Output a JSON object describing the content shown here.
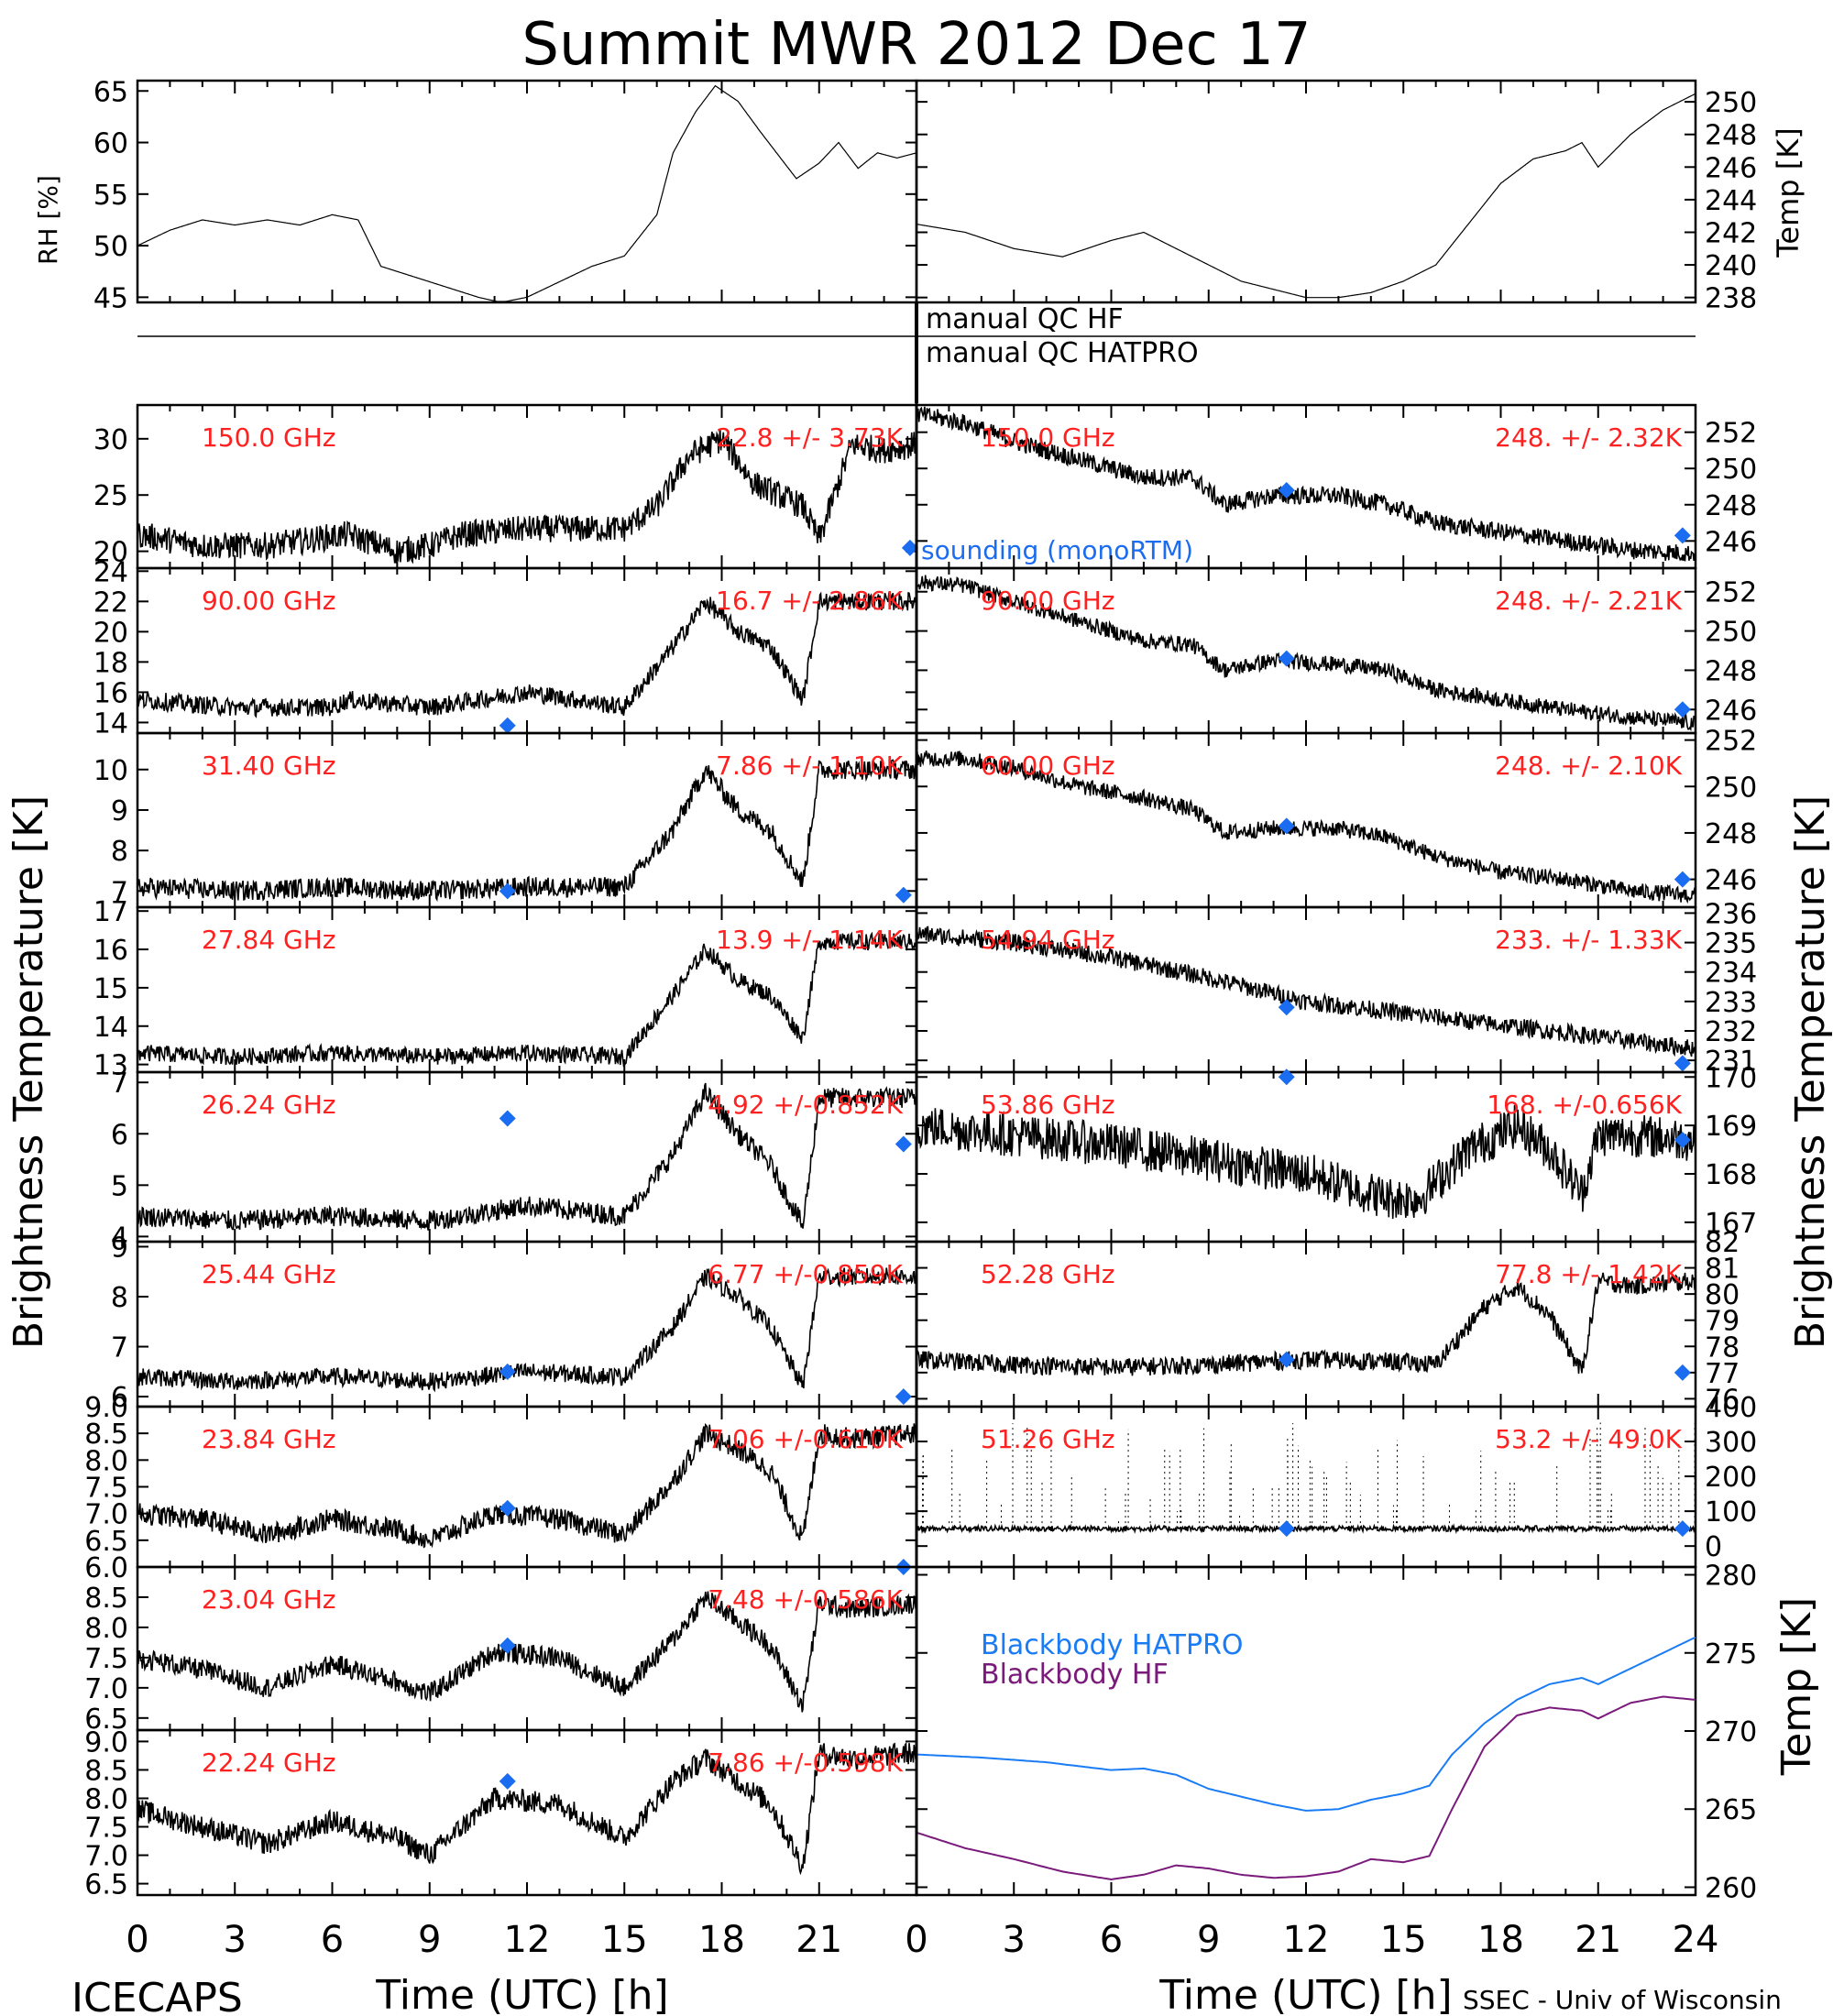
{
  "title": "Summit MWR 2012 Dec 17",
  "footer": {
    "left": "ICECAPS",
    "right": "SSEC - Univ of Wisconsin",
    "x_title_left": "Time (UTC) [h]",
    "x_title_right": "Time (UTC) [h]"
  },
  "qc": {
    "hf": "manual  QC HF",
    "hatpro": "manual  QC HATPRO"
  },
  "axis_labels": {
    "rh": "RH [%]",
    "temp": "Temp [K]",
    "tb_left": "Brightness Temperature [K]",
    "tb_right": "Brightness Temperature [K]",
    "bb_temp": "Temp [K]"
  },
  "colors": {
    "trace": "#000000",
    "label_red": "#ff2020",
    "sounding_blue": "#1a6cf0",
    "bb_hatpro": "#1a7cf5",
    "bb_hf": "#7a1a7a"
  },
  "x_ticks": [
    "0",
    "3",
    "6",
    "9",
    "12",
    "15",
    "18",
    "21",
    "0",
    "3",
    "6",
    "9",
    "12",
    "15",
    "18",
    "21",
    "24"
  ],
  "chart_data": [
    {
      "type": "line",
      "panel": "rh",
      "ylabel": "RH [%]",
      "ylim": [
        44.5,
        66
      ],
      "yticks": [
        "45",
        "50",
        "55",
        "60",
        "65"
      ],
      "x": [
        0,
        1,
        2,
        3,
        4,
        5,
        6,
        6.8,
        7.5,
        8.5,
        9.5,
        10.5,
        11.2,
        12,
        13,
        14,
        15,
        16.0,
        16.5,
        17.2,
        17.8,
        18.5,
        19.2,
        20.3,
        21,
        21.6,
        22.2,
        22.8,
        23.4,
        24
      ],
      "values": [
        50,
        51.5,
        52.5,
        52,
        52.5,
        52,
        53,
        52.5,
        48,
        47,
        46,
        45,
        44.5,
        45,
        46.5,
        48,
        49,
        53,
        59,
        63,
        65.5,
        64,
        61,
        56.5,
        58,
        60,
        57.5,
        59,
        58.5,
        59
      ]
    },
    {
      "type": "line",
      "panel": "temp",
      "ylabel": "Temp [K]",
      "ylim": [
        237.7,
        251.3
      ],
      "yticks": [
        "238",
        "240",
        "242",
        "244",
        "246",
        "248",
        "250"
      ],
      "x": [
        0,
        1.5,
        3,
        4.5,
        6,
        7,
        8,
        9,
        10,
        11,
        12,
        13,
        14,
        15,
        16,
        17,
        18,
        19,
        20,
        20.5,
        21,
        22,
        23,
        24
      ],
      "values": [
        242.5,
        242,
        241,
        240.5,
        241.5,
        242,
        241,
        240,
        239,
        238.5,
        238,
        238,
        238.3,
        239,
        240,
        242.5,
        245,
        246.5,
        247,
        247.5,
        246,
        248,
        249.5,
        250.5
      ]
    },
    {
      "type": "line",
      "side": "left",
      "freq": "150.0 GHz",
      "stats": "22.8 +/- 3.73K",
      "ylim": [
        18.5,
        33
      ],
      "yticks": [
        "20",
        "25",
        "30"
      ],
      "x": [
        0,
        2,
        4,
        6.5,
        8,
        9,
        10,
        12,
        14,
        15,
        16,
        17,
        18,
        19,
        20.5,
        21,
        22,
        23,
        24
      ],
      "values": [
        21.5,
        20.5,
        20.5,
        21.5,
        20,
        20.5,
        21.5,
        22,
        22,
        22,
        24,
        28.5,
        30,
        26,
        24,
        21,
        29.5,
        29,
        29.5
      ],
      "noise": 1.2,
      "sounding": [
        [
          23.8,
          20.3
        ]
      ],
      "sounding_label": "sounding (monoRTM)"
    },
    {
      "type": "line",
      "side": "right",
      "freq": "150.0 GHz",
      "stats": "248. +/- 2.32K",
      "ylim": [
        244.5,
        253.5
      ],
      "yticks": [
        "246",
        "248",
        "250",
        "252"
      ],
      "x": [
        0,
        1.5,
        3,
        5,
        7,
        8.5,
        9.5,
        11,
        13,
        14.5,
        16,
        18,
        20,
        22,
        24
      ],
      "values": [
        253,
        252.5,
        251.5,
        250.5,
        249.5,
        249.5,
        248.0,
        248.5,
        248.5,
        248,
        247,
        246.5,
        246,
        245.5,
        245.3
      ],
      "noise": 0.5,
      "sounding": [
        [
          11.4,
          248.8
        ],
        [
          23.6,
          246.3
        ]
      ]
    },
    {
      "type": "line",
      "side": "left",
      "freq": "90.00 GHz",
      "stats": "16.7 +/- 2.86K",
      "ylim": [
        13.3,
        24.2
      ],
      "yticks": [
        "14",
        "16",
        "18",
        "20",
        "22",
        "24"
      ],
      "x": [
        0,
        3,
        6,
        6.5,
        9,
        12,
        15,
        16.5,
        17.5,
        18.5,
        19.5,
        20.5,
        21,
        22,
        24
      ],
      "values": [
        15.5,
        15,
        15,
        15.5,
        15,
        16,
        15,
        19,
        22,
        20,
        19,
        15.5,
        22,
        22,
        22
      ],
      "noise": 0.6,
      "sounding": [
        [
          11.4,
          13.8
        ]
      ]
    },
    {
      "type": "line",
      "side": "right",
      "freq": "90.00 GHz",
      "stats": "248. +/- 2.21K",
      "ylim": [
        244.8,
        253.2
      ],
      "yticks": [
        "246",
        "248",
        "250",
        "252"
      ],
      "x": [
        0,
        1.5,
        3,
        5,
        7,
        8.5,
        9.5,
        11,
        13,
        14.5,
        16,
        18,
        20,
        22,
        24
      ],
      "values": [
        252.5,
        252.3,
        251.5,
        250.5,
        249.5,
        249.3,
        248,
        248.5,
        248.3,
        248,
        247,
        246.5,
        246,
        245.6,
        245.3
      ],
      "noise": 0.4,
      "sounding": [
        [
          11.4,
          248.6
        ],
        [
          23.6,
          246
        ]
      ]
    },
    {
      "type": "line",
      "side": "left",
      "freq": "31.40 GHz",
      "stats": "7.86 +/- 1.10K",
      "ylim": [
        6.6,
        10.9
      ],
      "yticks": [
        "7",
        "8",
        "9",
        "10"
      ],
      "x": [
        0,
        3,
        6,
        9,
        12,
        15,
        16.5,
        17.5,
        18.5,
        19.5,
        20.5,
        21,
        22,
        24
      ],
      "values": [
        7.1,
        7.0,
        7.1,
        7.0,
        7.1,
        7.1,
        8.5,
        10,
        9,
        8.5,
        7.2,
        10,
        10,
        10
      ],
      "noise": 0.25,
      "sounding": [
        [
          11.4,
          7.0
        ],
        [
          23.6,
          6.9
        ]
      ]
    },
    {
      "type": "line",
      "side": "right",
      "freq": "60.00 GHz",
      "stats": "248. +/- 2.10K",
      "ylim": [
        244.8,
        252.3
      ],
      "yticks": [
        "246",
        "248",
        "250",
        "252"
      ],
      "x": [
        0,
        1.5,
        3,
        5,
        7,
        8.5,
        9.5,
        11,
        13,
        14.5,
        16,
        18,
        20,
        22,
        24
      ],
      "values": [
        251.2,
        251.2,
        250.8,
        250,
        249.5,
        249,
        248,
        248.2,
        248.2,
        247.8,
        247,
        246.3,
        246,
        245.5,
        245.3
      ],
      "noise": 0.35,
      "sounding": [
        [
          11.4,
          248.3
        ],
        [
          23.6,
          246
        ]
      ]
    },
    {
      "type": "line",
      "side": "left",
      "freq": "27.84 GHz",
      "stats": "13.9 +/- 1.14K",
      "ylim": [
        12.8,
        17.1
      ],
      "yticks": [
        "13",
        "14",
        "15",
        "16",
        "17"
      ],
      "x": [
        0,
        3,
        6,
        9,
        12,
        15,
        16.5,
        17.5,
        18.5,
        19.5,
        20.5,
        21,
        22,
        24
      ],
      "values": [
        13.3,
        13.2,
        13.3,
        13.2,
        13.3,
        13.2,
        14.8,
        16,
        15.2,
        14.8,
        13.7,
        16.2,
        16.2,
        16.2
      ],
      "noise": 0.22,
      "sounding": []
    },
    {
      "type": "line",
      "side": "right",
      "freq": "54.94 GHz",
      "stats": "233. +/- 1.33K",
      "ylim": [
        230.6,
        236.2
      ],
      "yticks": [
        "231",
        "232",
        "233",
        "234",
        "235",
        "236"
      ],
      "x": [
        0,
        3,
        6,
        9,
        12,
        15,
        18,
        21,
        24
      ],
      "values": [
        235.3,
        235,
        234.5,
        233.8,
        233,
        232.6,
        232.2,
        231.8,
        231.4
      ],
      "noise": 0.3,
      "sounding": [
        [
          11.4,
          232.8
        ],
        [
          23.6,
          230.9
        ]
      ]
    },
    {
      "type": "line",
      "side": "left",
      "freq": "26.24 GHz",
      "stats": "4.92 +/-0.852K",
      "ylim": [
        3.9,
        7.2
      ],
      "yticks": [
        "4",
        "5",
        "6",
        "7"
      ],
      "x": [
        0,
        3,
        6,
        9,
        12,
        15,
        16.5,
        17.5,
        18.5,
        19.5,
        20.5,
        21,
        22,
        24
      ],
      "values": [
        4.4,
        4.3,
        4.4,
        4.3,
        4.6,
        4.4,
        5.6,
        6.8,
        6.0,
        5.4,
        4.2,
        6.7,
        6.7,
        6.7
      ],
      "noise": 0.2,
      "sounding": [
        [
          11.4,
          6.3
        ],
        [
          23.6,
          5.8
        ]
      ]
    },
    {
      "type": "line",
      "side": "right",
      "freq": "53.86 GHz",
      "stats": "168. +/-0.656K",
      "ylim": [
        166.6,
        170.1
      ],
      "yticks": [
        "167",
        "168",
        "169",
        "170"
      ],
      "x": [
        0,
        3,
        6,
        9,
        12,
        14.5,
        15.5,
        17,
        18.5,
        19.5,
        20.5,
        21,
        22,
        24
      ],
      "values": [
        169,
        168.8,
        168.6,
        168.3,
        168,
        167.5,
        167.5,
        168.5,
        169,
        168.5,
        167.6,
        168.8,
        168.8,
        168.7
      ],
      "noise": 0.45,
      "sounding": [
        [
          11.4,
          170
        ],
        [
          23.6,
          168.7
        ]
      ]
    },
    {
      "type": "line",
      "side": "left",
      "freq": "25.44 GHz",
      "stats": "6.77 +/-0.859K",
      "ylim": [
        5.8,
        9.1
      ],
      "yticks": [
        "6",
        "7",
        "8",
        "9"
      ],
      "x": [
        0,
        3,
        6,
        9,
        12,
        15,
        16.5,
        17.5,
        18.5,
        19.5,
        20.5,
        21,
        22,
        24
      ],
      "values": [
        6.4,
        6.3,
        6.4,
        6.3,
        6.5,
        6.4,
        7.4,
        8.4,
        8.0,
        7.4,
        6.2,
        8.4,
        8.4,
        8.4
      ],
      "noise": 0.18,
      "sounding": [
        [
          11.4,
          6.5
        ],
        [
          23.6,
          6.0
        ]
      ]
    },
    {
      "type": "line",
      "side": "right",
      "freq": "52.28 GHz",
      "stats": "77.8 +/- 1.42K",
      "ylim": [
        75.7,
        82
      ],
      "yticks": [
        "76",
        "77",
        "78",
        "79",
        "80",
        "81",
        "82"
      ],
      "x": [
        0,
        3,
        6,
        9,
        12,
        15,
        16,
        17.5,
        18.5,
        19.5,
        20.5,
        21,
        22,
        24
      ],
      "values": [
        77.5,
        77.3,
        77.2,
        77.3,
        77.5,
        77.4,
        77.3,
        79.5,
        80.3,
        79.2,
        77,
        80.5,
        80.3,
        80.5
      ],
      "noise": 0.35,
      "sounding": [
        [
          11.4,
          77.5
        ],
        [
          23.6,
          77.0
        ]
      ]
    },
    {
      "type": "line",
      "side": "left",
      "freq": "23.84 GHz",
      "stats": "7.06 +/-0.610K",
      "ylim": [
        6.0,
        9.0
      ],
      "yticks": [
        "9.0",
        "8.5",
        "8.0",
        "7.5",
        "7.0",
        "6.5",
        "6.0"
      ],
      "x": [
        0,
        2,
        4,
        6,
        8,
        9,
        11,
        13,
        15,
        16.5,
        17.5,
        18.5,
        19.5,
        20.5,
        21,
        22,
        24
      ],
      "values": [
        7.0,
        6.9,
        6.6,
        6.9,
        6.7,
        6.5,
        7.0,
        6.9,
        6.6,
        7.6,
        8.5,
        8.2,
        7.8,
        6.5,
        8.5,
        8.4,
        8.5
      ],
      "noise": 0.2,
      "sounding": [
        [
          11.4,
          7.1
        ],
        [
          23.6,
          6.0
        ]
      ]
    },
    {
      "type": "line",
      "side": "right",
      "freq": "51.26 GHz",
      "stats": "53.2 +/- 49.0K",
      "ylim": [
        -60,
        400
      ],
      "yticks": [
        "0",
        "100",
        "200",
        "300",
        "400"
      ],
      "x": [
        0,
        24
      ],
      "values": [
        50,
        50
      ],
      "noise": 8,
      "spikes": true,
      "sounding": [
        [
          11.4,
          50
        ],
        [
          23.6,
          50
        ]
      ]
    },
    {
      "type": "line",
      "side": "left",
      "freq": "23.04 GHz",
      "stats": "7.48 +/-0.586K",
      "ylim": [
        6.3,
        9.0
      ],
      "yticks": [
        "8.5",
        "8.0",
        "7.5",
        "7.0",
        "6.5"
      ],
      "x": [
        0,
        2,
        4,
        6,
        8,
        9,
        11,
        13,
        15,
        16.5,
        17.5,
        18.5,
        19.5,
        20.5,
        21,
        22,
        24
      ],
      "values": [
        7.5,
        7.3,
        7.0,
        7.4,
        7.1,
        6.9,
        7.6,
        7.5,
        7.0,
        7.8,
        8.5,
        8.1,
        7.7,
        6.7,
        8.4,
        8.3,
        8.4
      ],
      "noise": 0.17,
      "sounding": [
        [
          11.4,
          7.7
        ]
      ]
    },
    {
      "type": "line",
      "side": "left",
      "freq": "22.24 GHz",
      "stats": "7.86 +/-0.598K",
      "ylim": [
        6.3,
        9.2
      ],
      "yticks": [
        "9.0",
        "8.5",
        "8.0",
        "7.5",
        "7.0",
        "6.5"
      ],
      "x": [
        0,
        2,
        4,
        6,
        8,
        9,
        11,
        13,
        15,
        16.5,
        17.5,
        18.5,
        19.5,
        20.5,
        21,
        22,
        24
      ],
      "values": [
        7.8,
        7.5,
        7.2,
        7.6,
        7.3,
        7.0,
        8.0,
        7.9,
        7.3,
        8.3,
        8.7,
        8.3,
        7.9,
        6.8,
        8.8,
        8.7,
        8.8
      ],
      "noise": 0.2,
      "sounding": [
        [
          11.4,
          8.3
        ]
      ]
    },
    {
      "type": "line",
      "panel": "blackbody",
      "ylabel": "Temp [K]",
      "ylim": [
        259.5,
        280.5
      ],
      "yticks": [
        "260",
        "265",
        "270",
        "275",
        "280"
      ],
      "series": [
        {
          "name": "Blackbody HATPRO",
          "color": "#1a7cf5",
          "x": [
            0,
            2,
            4,
            6,
            7,
            8,
            9,
            10,
            11,
            12,
            13,
            14,
            15,
            15.8,
            16.5,
            17.5,
            18.5,
            19.5,
            20.5,
            21,
            22,
            23,
            24
          ],
          "values": [
            268.5,
            268.3,
            268,
            267.5,
            267.6,
            267.2,
            266.3,
            265.8,
            265.3,
            264.9,
            265.0,
            265.6,
            266.0,
            266.5,
            268.5,
            270.5,
            272,
            273,
            273.4,
            273,
            274,
            275,
            276
          ]
        },
        {
          "name": "Blackbody HF",
          "color": "#7a1a7a",
          "x": [
            0,
            1.5,
            3,
            4.5,
            6,
            7,
            8,
            9,
            10,
            11,
            12,
            13,
            14,
            15,
            15.8,
            16.5,
            17.5,
            18.5,
            19.5,
            20.5,
            21,
            22,
            23,
            24
          ],
          "values": [
            263.5,
            262.5,
            261.8,
            261,
            260.5,
            260.8,
            261.4,
            261.2,
            260.8,
            260.6,
            260.7,
            261.0,
            261.8,
            261.6,
            262.0,
            265,
            269,
            271,
            271.5,
            271.3,
            270.8,
            271.8,
            272.2,
            272
          ]
        }
      ]
    }
  ]
}
